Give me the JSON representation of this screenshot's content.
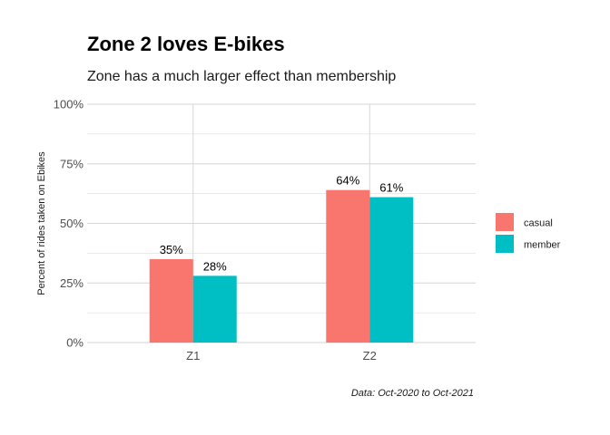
{
  "colors": {
    "casual": "#F8766D",
    "member": "#00BFC4",
    "grid": "#d6d6d6"
  },
  "chart_data": {
    "type": "bar",
    "title": "Zone 2 loves E-bikes",
    "subtitle": "Zone has a much larger effect than membership",
    "caption": "Data: Oct-2020 to Oct-2021",
    "xlabel": "",
    "ylabel": "Percent of rides taken on Ebikes",
    "categories": [
      "Z1",
      "Z2"
    ],
    "series": [
      {
        "name": "casual",
        "values": [
          35,
          64
        ],
        "labels": [
          "35%",
          "64%"
        ]
      },
      {
        "name": "member",
        "values": [
          28,
          61
        ],
        "labels": [
          "28%",
          "61%"
        ]
      }
    ],
    "ylim": [
      0,
      100
    ],
    "yticks": [
      0,
      25,
      50,
      75,
      100
    ],
    "ytick_labels": [
      "0%",
      "25%",
      "50%",
      "75%",
      "100%"
    ],
    "grid": true,
    "legend": "right"
  }
}
